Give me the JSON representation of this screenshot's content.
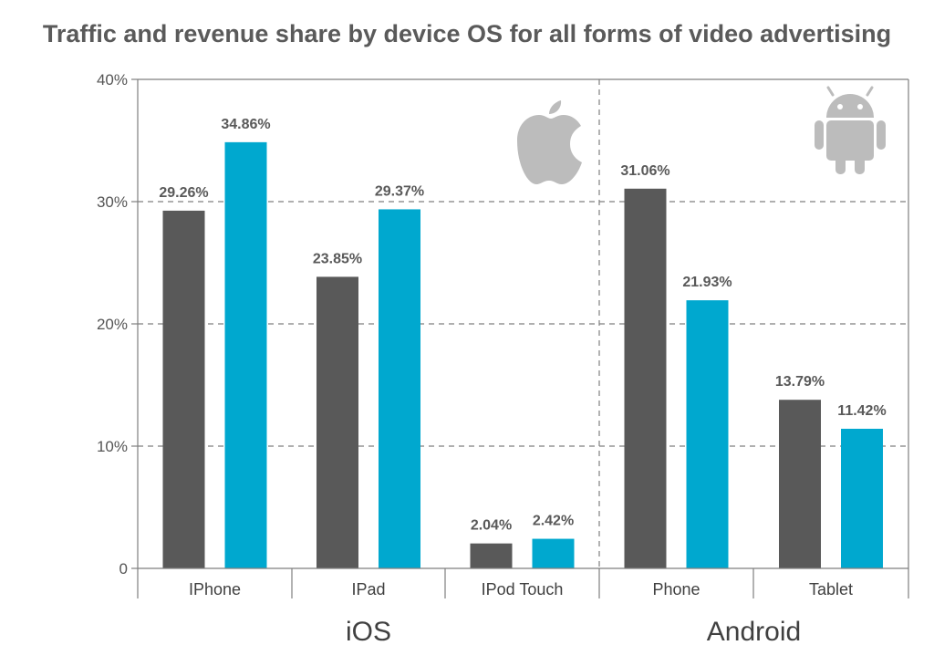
{
  "chart_data": {
    "type": "bar",
    "title": "Traffic and revenue share by device OS for all forms of video advertising",
    "categories": [
      "IPhone",
      "IPad",
      "IPod Touch",
      "Phone",
      "Tablet"
    ],
    "groups": [
      {
        "label": "iOS",
        "categories": [
          "IPhone",
          "IPad",
          "IPod Touch"
        ],
        "icon": "apple-logo-icon"
      },
      {
        "label": "Android",
        "categories": [
          "Phone",
          "Tablet"
        ],
        "icon": "android-robot-icon"
      }
    ],
    "series": [
      {
        "values": [
          29.26,
          23.85,
          2.04,
          31.06,
          13.79
        ],
        "labels": [
          "29.26%",
          "23.85%",
          "2.04%",
          "31.06%",
          "13.79%"
        ],
        "color": "#595959"
      },
      {
        "values": [
          34.86,
          29.37,
          2.42,
          21.93,
          11.42
        ],
        "labels": [
          "34.86%",
          "29.37%",
          "2.42%",
          "21.93%",
          "11.42%"
        ],
        "color": "#00a8cf"
      }
    ],
    "ylim": [
      0,
      40
    ],
    "yticks": [
      0,
      10,
      20,
      30,
      40
    ],
    "ytick_labels": [
      "0",
      "10%",
      "20%",
      "30%",
      "40%"
    ],
    "grid": "dashed horizontal",
    "xlabel": "",
    "ylabel": ""
  }
}
